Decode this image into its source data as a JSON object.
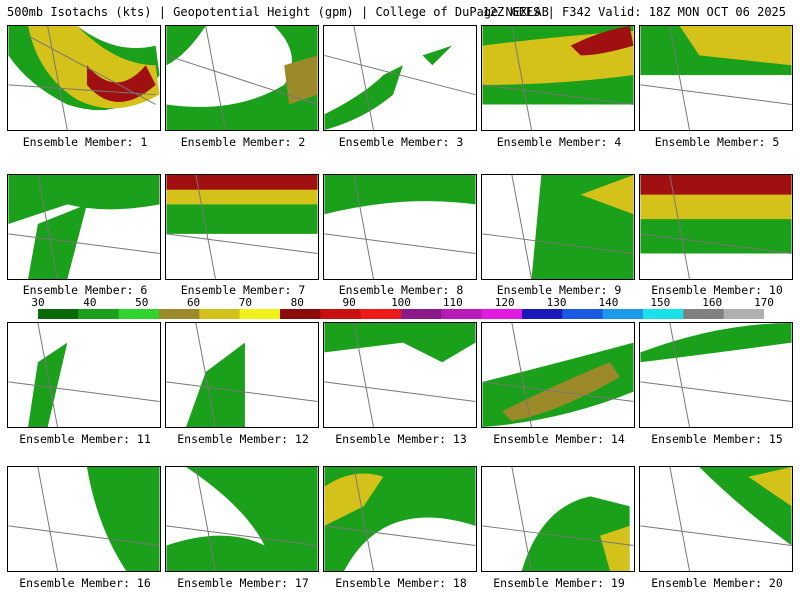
{
  "header": {
    "left": "500mb Isotachs (kts) | Geopotential Height (gpm) | College of DuPage NEXLAB",
    "right": "12Z GEFS | F342 Valid: 18Z MON OCT 06 2025"
  },
  "colorbar": {
    "labels": [
      "30",
      "40",
      "50",
      "60",
      "70",
      "80",
      "90",
      "100",
      "110",
      "120",
      "130",
      "140",
      "150",
      "160",
      "170"
    ],
    "colors": [
      "#0a6a0a",
      "#1aa01a",
      "#2fd42f",
      "#9c8a2a",
      "#d4c21a",
      "#f2f21a",
      "#8b0a0a",
      "#c81010",
      "#ee1a1a",
      "#8a1a8a",
      "#b81ab8",
      "#e01ae0",
      "#1a1ab8",
      "#1a5ae0",
      "#1a9ae8",
      "#1ae0e8",
      "#808080",
      "#b0b0b0"
    ]
  },
  "members": [
    {
      "label": "Ensemble Member: 1"
    },
    {
      "label": "Ensemble Member: 2"
    },
    {
      "label": "Ensemble Member: 3"
    },
    {
      "label": "Ensemble Member: 4"
    },
    {
      "label": "Ensemble Member: 5"
    },
    {
      "label": "Ensemble Member: 6"
    },
    {
      "label": "Ensemble Member: 7"
    },
    {
      "label": "Ensemble Member: 8"
    },
    {
      "label": "Ensemble Member: 9"
    },
    {
      "label": "Ensemble Member: 10"
    },
    {
      "label": "Ensemble Member: 11"
    },
    {
      "label": "Ensemble Member: 12"
    },
    {
      "label": "Ensemble Member: 13"
    },
    {
      "label": "Ensemble Member: 14"
    },
    {
      "label": "Ensemble Member: 15"
    },
    {
      "label": "Ensemble Member: 16"
    },
    {
      "label": "Ensemble Member: 17"
    },
    {
      "label": "Ensemble Member: 18"
    },
    {
      "label": "Ensemble Member: 19"
    },
    {
      "label": "Ensemble Member: 20"
    }
  ]
}
